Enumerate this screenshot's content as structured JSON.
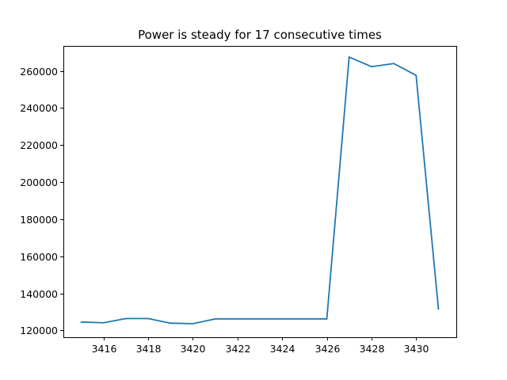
{
  "chart_data": {
    "type": "line",
    "title": "Power is steady for 17 consecutive times",
    "xlabel": "",
    "ylabel": "",
    "xlim": [
      3414.2,
      3431.8
    ],
    "ylim": [
      116300,
      273500
    ],
    "xticks": [
      3416,
      3418,
      3420,
      3422,
      3424,
      3426,
      3428,
      3430
    ],
    "yticks": [
      120000,
      140000,
      160000,
      180000,
      200000,
      220000,
      240000,
      260000
    ],
    "grid": false,
    "legend": "none",
    "series": [
      {
        "color": "#1f77b4",
        "x": [
          3415,
          3416,
          3417,
          3418,
          3419,
          3420,
          3421,
          3422,
          3423,
          3424,
          3425,
          3426,
          3427,
          3428,
          3429,
          3430,
          3431
        ],
        "y": [
          124500,
          124100,
          126400,
          126400,
          123900,
          123600,
          126200,
          126200,
          126200,
          126200,
          126200,
          126200,
          267500,
          262300,
          264000,
          257600,
          131500
        ]
      }
    ]
  }
}
